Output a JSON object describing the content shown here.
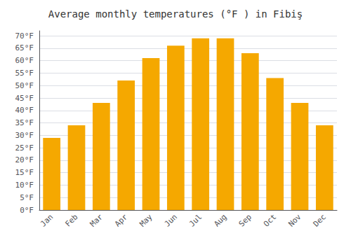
{
  "chart_data": {
    "type": "bar",
    "title": "Average monthly temperatures (°F ) in Fibiş",
    "categories": [
      "Jan",
      "Feb",
      "Mar",
      "Apr",
      "May",
      "Jun",
      "Jul",
      "Aug",
      "Sep",
      "Oct",
      "Nov",
      "Dec"
    ],
    "values": [
      29,
      34,
      43,
      52,
      61,
      66,
      69,
      69,
      63,
      53,
      43,
      34
    ],
    "color": "#F5A800",
    "ylim": [
      0,
      72
    ],
    "yticks": [
      {
        "value": 0,
        "label": "0°F"
      },
      {
        "value": 5,
        "label": "5°F"
      },
      {
        "value": 10,
        "label": "10°F"
      },
      {
        "value": 15,
        "label": "15°F"
      },
      {
        "value": 20,
        "label": "20°F"
      },
      {
        "value": 25,
        "label": "25°F"
      },
      {
        "value": 30,
        "label": "30°F"
      },
      {
        "value": 35,
        "label": "35°F"
      },
      {
        "value": 40,
        "label": "40°F"
      },
      {
        "value": 45,
        "label": "45°F"
      },
      {
        "value": 50,
        "label": "50°F"
      },
      {
        "value": 55,
        "label": "55°F"
      },
      {
        "value": 60,
        "label": "60°F"
      },
      {
        "value": 65,
        "label": "65°F"
      },
      {
        "value": 70,
        "label": "70°F"
      }
    ],
    "grid": true
  }
}
